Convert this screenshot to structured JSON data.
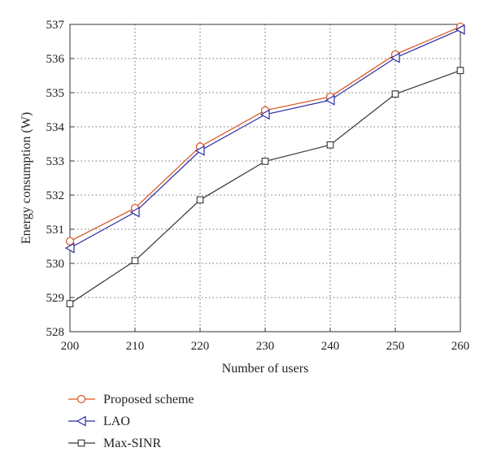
{
  "chart_data": {
    "type": "line",
    "title": "",
    "xlabel": "Number of users",
    "ylabel": "Energy consumption (W)",
    "xlim": [
      200,
      260
    ],
    "ylim": [
      528,
      537
    ],
    "x": [
      200,
      210,
      220,
      230,
      240,
      250,
      260
    ],
    "x_ticks": [
      "200",
      "210",
      "220",
      "230",
      "240",
      "250",
      "260"
    ],
    "y_ticks": [
      "528",
      "529",
      "530",
      "531",
      "532",
      "533",
      "534",
      "535",
      "536",
      "537"
    ],
    "grid": "dotted, both axes",
    "legend_position": "below plot",
    "series": [
      {
        "name": "Proposed scheme",
        "marker": "circle",
        "color": "#d9531e",
        "values": [
          530.65,
          531.62,
          533.42,
          534.48,
          534.88,
          536.12,
          536.93
        ]
      },
      {
        "name": "LAO",
        "marker": "left-triangle",
        "color": "#2b2ba0",
        "values": [
          530.45,
          531.5,
          533.3,
          534.36,
          534.78,
          536.02,
          536.85
        ]
      },
      {
        "name": "Max-SINR",
        "marker": "square",
        "color": "#333333",
        "values": [
          528.82,
          530.08,
          531.86,
          532.99,
          533.47,
          534.96,
          535.65
        ]
      }
    ]
  }
}
